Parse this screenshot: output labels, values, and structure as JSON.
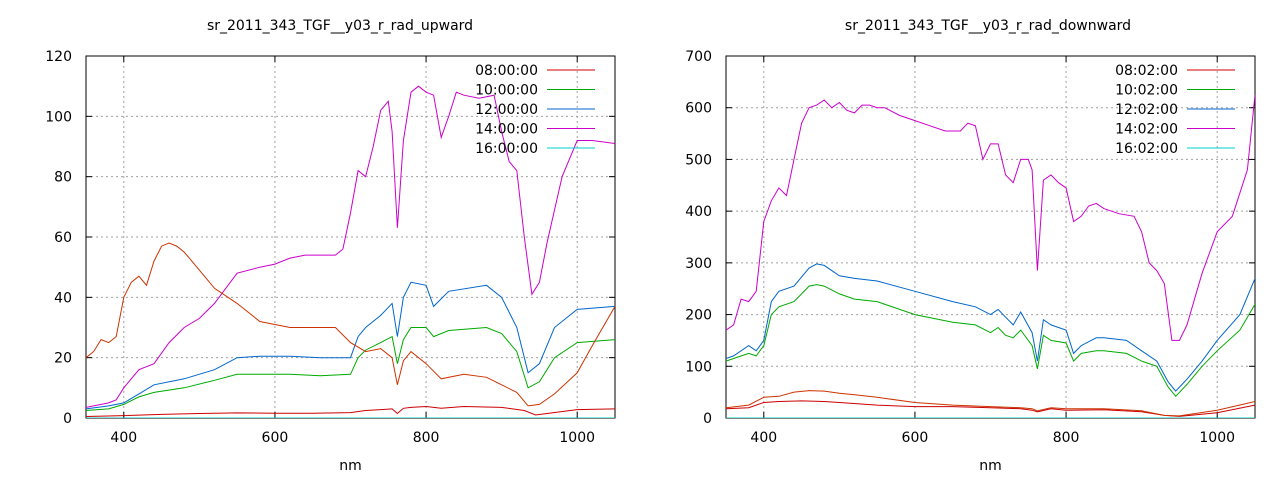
{
  "chart_data": [
    {
      "type": "line",
      "title": "sr_2011_343_TGF__y03_r_rad_upward",
      "xlabel": "nm",
      "ylabel": "",
      "xlim": [
        350,
        1050
      ],
      "ylim": [
        0,
        120
      ],
      "xticks": [
        400,
        600,
        800,
        1000
      ],
      "yticks": [
        0,
        20,
        40,
        60,
        80,
        100,
        120
      ],
      "grid": true,
      "legend_position": "top-right",
      "series": [
        {
          "name": "08:00:00",
          "color": "#cc0000",
          "x": [
            350,
            400,
            450,
            500,
            550,
            600,
            650,
            700,
            720,
            740,
            755,
            762,
            770,
            780,
            800,
            820,
            850,
            900,
            930,
            945,
            960,
            1000,
            1050
          ],
          "y": [
            0.5,
            0.8,
            1.2,
            1.5,
            1.7,
            1.6,
            1.6,
            1.8,
            2.5,
            2.8,
            3.0,
            1.5,
            3.2,
            3.5,
            3.8,
            3.2,
            3.8,
            3.5,
            2.5,
            1.0,
            1.5,
            2.8,
            3.0
          ]
        },
        {
          "name": "10:00:00",
          "color": "#00aa00",
          "x": [
            350,
            380,
            400,
            420,
            440,
            480,
            520,
            550,
            580,
            620,
            660,
            700,
            710,
            720,
            740,
            755,
            762,
            770,
            780,
            800,
            810,
            830,
            880,
            900,
            920,
            935,
            950,
            970,
            1000,
            1050
          ],
          "y": [
            2.5,
            3.0,
            4.5,
            7.0,
            8.5,
            10.0,
            12.5,
            14.5,
            14.5,
            14.5,
            14.0,
            14.5,
            20.0,
            22.5,
            25.0,
            27.0,
            18.0,
            26.0,
            30.0,
            30.0,
            27.0,
            29.0,
            30.0,
            28.0,
            22.0,
            10.0,
            12.0,
            20.0,
            25.0,
            26.0
          ]
        },
        {
          "name": "12:00:00",
          "color": "#0066cc",
          "x": [
            350,
            380,
            400,
            420,
            440,
            480,
            520,
            550,
            580,
            620,
            660,
            700,
            710,
            720,
            740,
            755,
            762,
            770,
            780,
            800,
            810,
            830,
            880,
            900,
            920,
            935,
            950,
            970,
            1000,
            1050
          ],
          "y": [
            3.0,
            4.0,
            5.0,
            8.0,
            11.0,
            13.0,
            16.0,
            20.0,
            20.5,
            20.5,
            20.0,
            20.0,
            27.0,
            30.0,
            34.0,
            38.0,
            27.0,
            40.0,
            45.0,
            44.0,
            37.0,
            42.0,
            44.0,
            40.0,
            30.0,
            15.0,
            18.0,
            30.0,
            36.0,
            37.0
          ]
        },
        {
          "name": "14:00:00",
          "color": "#cc00cc",
          "x": [
            350,
            380,
            390,
            400,
            420,
            440,
            460,
            480,
            500,
            520,
            550,
            580,
            600,
            620,
            640,
            660,
            680,
            690,
            700,
            710,
            720,
            730,
            740,
            750,
            755,
            762,
            770,
            780,
            790,
            800,
            810,
            820,
            830,
            840,
            850,
            870,
            890,
            900,
            910,
            920,
            930,
            940,
            950,
            960,
            980,
            1000,
            1020,
            1050
          ],
          "y": [
            3.5,
            5.0,
            6.0,
            10.0,
            16.0,
            18.0,
            25.0,
            30.0,
            33.0,
            38.0,
            48.0,
            50.0,
            51.0,
            53.0,
            54.0,
            54.0,
            54.0,
            56.0,
            68.0,
            82.0,
            80.0,
            90.0,
            102.0,
            105.0,
            95.0,
            63.0,
            92.0,
            108.0,
            110.0,
            108.0,
            107.0,
            93.0,
            100.0,
            108.0,
            107.0,
            106.0,
            107.0,
            95.0,
            85.0,
            82.0,
            60.0,
            41.0,
            45.0,
            58.0,
            80.0,
            92.0,
            92.0,
            91.0
          ]
        },
        {
          "name": "16:00:00",
          "color": "#00cccc",
          "x": [
            350,
            400,
            500,
            600,
            700,
            800,
            900,
            1000,
            1050
          ],
          "y": [
            0.0,
            0.0,
            0.0,
            0.0,
            0.0,
            0.0,
            0.0,
            0.0,
            0.0
          ]
        },
        {
          "name": "",
          "color": "#cc3300",
          "x": [
            350,
            360,
            370,
            380,
            390,
            400,
            410,
            420,
            430,
            440,
            450,
            460,
            470,
            480,
            490,
            500,
            520,
            550,
            580,
            600,
            620,
            650,
            680,
            700,
            720,
            740,
            755,
            762,
            770,
            780,
            800,
            820,
            850,
            880,
            900,
            920,
            935,
            950,
            970,
            1000,
            1020,
            1050
          ],
          "y": [
            20.0,
            22.0,
            26.0,
            25.0,
            27.0,
            40.0,
            45.0,
            47.0,
            44.0,
            52.0,
            57.0,
            58.0,
            57.0,
            55.0,
            52.0,
            49.0,
            43.0,
            38.0,
            32.0,
            31.0,
            30.0,
            30.0,
            30.0,
            25.0,
            22.0,
            23.0,
            20.0,
            11.0,
            19.0,
            22.0,
            18.0,
            13.0,
            14.5,
            13.5,
            11.0,
            8.5,
            4.0,
            4.5,
            8.0,
            15.0,
            24.0,
            37.0
          ]
        }
      ]
    },
    {
      "type": "line",
      "title": "sr_2011_343_TGF__y03_r_rad_downward",
      "xlabel": "nm",
      "ylabel": "",
      "xlim": [
        350,
        1050
      ],
      "ylim": [
        0,
        700
      ],
      "xticks": [
        400,
        600,
        800,
        1000
      ],
      "yticks": [
        0,
        100,
        200,
        300,
        400,
        500,
        600,
        700
      ],
      "grid": true,
      "legend_position": "top-right",
      "series": [
        {
          "name": "08:02:00",
          "color": "#cc0000",
          "x": [
            350,
            380,
            400,
            420,
            450,
            480,
            500,
            550,
            600,
            650,
            700,
            740,
            755,
            762,
            780,
            800,
            850,
            900,
            930,
            950,
            1000,
            1050
          ],
          "y": [
            18.0,
            20.0,
            30.0,
            32.0,
            33.0,
            32.0,
            30.0,
            25.0,
            22.0,
            22.0,
            20.0,
            18.0,
            15.0,
            12.0,
            18.0,
            15.0,
            16.0,
            12.0,
            5.0,
            3.0,
            10.0,
            25.0
          ]
        },
        {
          "name": "10:02:00",
          "color": "#00aa00",
          "x": [
            350,
            360,
            380,
            390,
            400,
            410,
            420,
            440,
            460,
            470,
            480,
            500,
            520,
            550,
            600,
            650,
            680,
            700,
            710,
            720,
            730,
            740,
            755,
            762,
            770,
            780,
            800,
            810,
            820,
            840,
            850,
            880,
            900,
            920,
            935,
            945,
            960,
            980,
            1000,
            1030,
            1050
          ],
          "y": [
            110.0,
            115.0,
            125.0,
            120.0,
            140.0,
            200.0,
            215.0,
            225.0,
            255.0,
            258.0,
            255.0,
            240.0,
            230.0,
            225.0,
            200.0,
            185.0,
            180.0,
            165.0,
            175.0,
            160.0,
            155.0,
            170.0,
            140.0,
            95.0,
            160.0,
            150.0,
            145.0,
            110.0,
            125.0,
            130.0,
            130.0,
            125.0,
            110.0,
            100.0,
            60.0,
            42.0,
            65.0,
            100.0,
            130.0,
            170.0,
            220.0
          ]
        },
        {
          "name": "12:02:00",
          "color": "#0066cc",
          "x": [
            350,
            360,
            380,
            390,
            400,
            410,
            420,
            440,
            460,
            470,
            480,
            500,
            520,
            550,
            600,
            650,
            680,
            700,
            710,
            720,
            730,
            740,
            755,
            762,
            770,
            780,
            800,
            810,
            820,
            840,
            850,
            880,
            900,
            920,
            935,
            945,
            960,
            980,
            1000,
            1030,
            1050
          ],
          "y": [
            115.0,
            120.0,
            140.0,
            130.0,
            150.0,
            225.0,
            245.0,
            255.0,
            290.0,
            298.0,
            295.0,
            275.0,
            270.0,
            265.0,
            245.0,
            225.0,
            215.0,
            200.0,
            210.0,
            195.0,
            180.0,
            205.0,
            165.0,
            110.0,
            190.0,
            180.0,
            170.0,
            125.0,
            140.0,
            155.0,
            155.0,
            150.0,
            130.0,
            110.0,
            70.0,
            52.0,
            75.0,
            110.0,
            150.0,
            200.0,
            270.0
          ]
        },
        {
          "name": "14:02:00",
          "color": "#cc00cc",
          "x": [
            350,
            360,
            370,
            380,
            390,
            400,
            410,
            420,
            430,
            440,
            450,
            460,
            470,
            480,
            490,
            500,
            510,
            520,
            530,
            540,
            550,
            560,
            580,
            600,
            620,
            640,
            660,
            670,
            680,
            690,
            700,
            710,
            720,
            730,
            740,
            750,
            755,
            762,
            770,
            780,
            790,
            800,
            810,
            820,
            830,
            840,
            850,
            870,
            890,
            900,
            910,
            920,
            930,
            940,
            950,
            960,
            980,
            1000,
            1020,
            1040,
            1050
          ],
          "y": [
            170.0,
            180.0,
            230.0,
            225.0,
            245.0,
            380.0,
            420.0,
            445.0,
            430.0,
            500.0,
            570.0,
            600.0,
            605.0,
            615.0,
            600.0,
            610.0,
            595.0,
            590.0,
            605.0,
            605.0,
            600.0,
            600.0,
            585.0,
            575.0,
            565.0,
            555.0,
            555.0,
            570.0,
            565.0,
            500.0,
            530.0,
            530.0,
            470.0,
            455.0,
            500.0,
            500.0,
            480.0,
            285.0,
            460.0,
            470.0,
            455.0,
            445.0,
            380.0,
            390.0,
            410.0,
            415.0,
            405.0,
            395.0,
            390.0,
            360.0,
            300.0,
            285.0,
            260.0,
            150.0,
            150.0,
            180.0,
            280.0,
            360.0,
            390.0,
            480.0,
            625.0
          ]
        },
        {
          "name": "16:02:00",
          "color": "#00cccc",
          "x": [
            350,
            400,
            500,
            600,
            700,
            800,
            900,
            1000,
            1050
          ],
          "y": [
            0.0,
            0.0,
            0.0,
            0.0,
            0.0,
            0.0,
            0.0,
            0.0,
            0.0
          ]
        },
        {
          "name": "",
          "color": "#cc3300",
          "x": [
            350,
            380,
            400,
            420,
            440,
            460,
            480,
            500,
            520,
            550,
            600,
            650,
            700,
            740,
            755,
            762,
            780,
            800,
            850,
            900,
            930,
            950,
            1000,
            1050
          ],
          "y": [
            20.0,
            25.0,
            40.0,
            42.0,
            50.0,
            53.0,
            52.0,
            48.0,
            45.0,
            40.0,
            30.0,
            25.0,
            22.0,
            20.0,
            18.0,
            14.0,
            20.0,
            18.0,
            18.0,
            14.0,
            5.0,
            4.0,
            15.0,
            32.0
          ]
        }
      ]
    }
  ]
}
